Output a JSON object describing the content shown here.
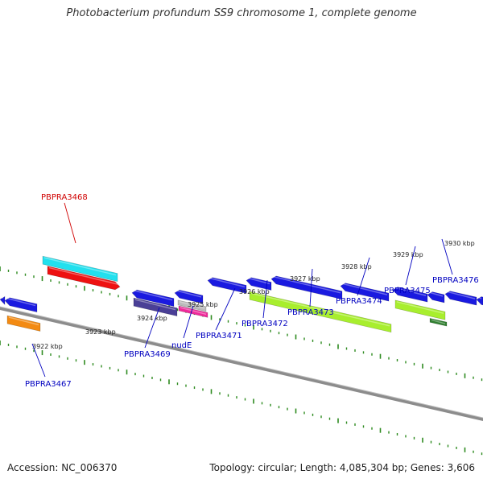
{
  "title": "Photobacterium profundum SS9 chromosome 1, complete genome",
  "footer": {
    "accession": "Accession: NC_006370",
    "summary": "Topology: circular; Length: 4,085,304 bp; Genes: 3,606"
  },
  "colors": {
    "backbone": "#8c8c8c",
    "ticks": "#2e8b20",
    "gene_blue": "#1a1ae0",
    "label_blue": "#0000c0",
    "label_red": "#d00000",
    "cyan": "#22e0ee",
    "red": "#ee1111",
    "orange": "#f38a12",
    "lime": "#a8ee2e",
    "purple": "#4a3f96",
    "pink": "#ee2a9a",
    "grey": "#bbbbbb",
    "dark_green": "#2f7f2f"
  },
  "kbp_markers": [
    {
      "kbp": 3922,
      "label": "3922 kbp"
    },
    {
      "kbp": 3923,
      "label": "3923 kbp"
    },
    {
      "kbp": 3924,
      "label": "3924 kbp"
    },
    {
      "kbp": 3925,
      "label": "3925 kbp"
    },
    {
      "kbp": 3926,
      "label": "3926 kbp"
    },
    {
      "kbp": 3927,
      "label": "3927 kbp"
    },
    {
      "kbp": 3928,
      "label": "3928 kbp"
    },
    {
      "kbp": 3929,
      "label": "3929 kbp"
    },
    {
      "kbp": 3930,
      "label": "3930 kbp"
    }
  ],
  "gene_labels": [
    {
      "name": "PBPRA3467",
      "color": "blue"
    },
    {
      "name": "PBPRA3468",
      "color": "red"
    },
    {
      "name": "PBPRA3469",
      "color": "blue"
    },
    {
      "name": "nudE",
      "color": "blue"
    },
    {
      "name": "PBPRA3471",
      "color": "blue"
    },
    {
      "name": "PBPRA3472",
      "color": "blue"
    },
    {
      "name": "PBPRA3473",
      "color": "blue"
    },
    {
      "name": "PBPRA3474",
      "color": "blue"
    },
    {
      "name": "PBPRA3475",
      "color": "blue"
    },
    {
      "name": "PBPRA3476",
      "color": "blue"
    }
  ]
}
